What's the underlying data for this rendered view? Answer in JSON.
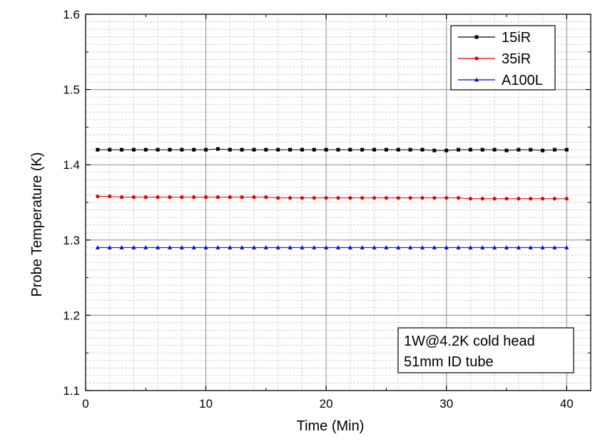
{
  "chart_data": {
    "type": "line",
    "title": "",
    "xlabel": "Time (Min)",
    "ylabel": "Probe Temperature (K)",
    "xlim": [
      0,
      42
    ],
    "ylim": [
      1.1,
      1.6
    ],
    "xticks": [
      0,
      10,
      20,
      30,
      40
    ],
    "xtick_labels": [
      "0",
      "10",
      "20",
      "30",
      "40"
    ],
    "yticks": [
      1.1,
      1.2,
      1.3,
      1.4,
      1.5,
      1.6
    ],
    "ytick_labels": [
      "1.1",
      "1.2",
      "1.3",
      "1.4",
      "1.5",
      "1.6"
    ],
    "grid": true,
    "legend_position": "top-right",
    "annotation": [
      "1W@4.2K cold head",
      "51mm ID tube"
    ],
    "x": [
      1,
      2,
      3,
      4,
      5,
      6,
      7,
      8,
      9,
      10,
      11,
      12,
      13,
      14,
      15,
      16,
      17,
      18,
      19,
      20,
      21,
      22,
      23,
      24,
      25,
      26,
      27,
      28,
      29,
      30,
      31,
      32,
      33,
      34,
      35,
      36,
      37,
      38,
      39,
      40
    ],
    "series": [
      {
        "name": "15iR",
        "color": "#000000",
        "marker": "square",
        "values": [
          1.42,
          1.42,
          1.42,
          1.42,
          1.42,
          1.42,
          1.42,
          1.42,
          1.42,
          1.42,
          1.421,
          1.42,
          1.42,
          1.42,
          1.42,
          1.42,
          1.42,
          1.42,
          1.42,
          1.42,
          1.42,
          1.42,
          1.42,
          1.42,
          1.42,
          1.42,
          1.42,
          1.42,
          1.419,
          1.419,
          1.42,
          1.42,
          1.42,
          1.42,
          1.419,
          1.42,
          1.42,
          1.419,
          1.42,
          1.42
        ]
      },
      {
        "name": "35iR",
        "color": "#e00000",
        "marker": "circle",
        "values": [
          1.358,
          1.358,
          1.357,
          1.357,
          1.357,
          1.357,
          1.357,
          1.357,
          1.357,
          1.357,
          1.357,
          1.357,
          1.357,
          1.357,
          1.357,
          1.356,
          1.356,
          1.356,
          1.356,
          1.356,
          1.356,
          1.356,
          1.356,
          1.356,
          1.356,
          1.356,
          1.356,
          1.356,
          1.356,
          1.356,
          1.356,
          1.355,
          1.355,
          1.355,
          1.355,
          1.355,
          1.355,
          1.355,
          1.355,
          1.355
        ]
      },
      {
        "name": "A100L",
        "color": "#0000e0",
        "marker": "triangle",
        "values": [
          1.29,
          1.29,
          1.29,
          1.29,
          1.29,
          1.29,
          1.29,
          1.29,
          1.29,
          1.29,
          1.29,
          1.29,
          1.29,
          1.29,
          1.29,
          1.29,
          1.29,
          1.29,
          1.29,
          1.29,
          1.29,
          1.29,
          1.29,
          1.29,
          1.29,
          1.29,
          1.29,
          1.29,
          1.29,
          1.29,
          1.29,
          1.29,
          1.29,
          1.29,
          1.29,
          1.29,
          1.29,
          1.29,
          1.29,
          1.29
        ]
      }
    ]
  }
}
